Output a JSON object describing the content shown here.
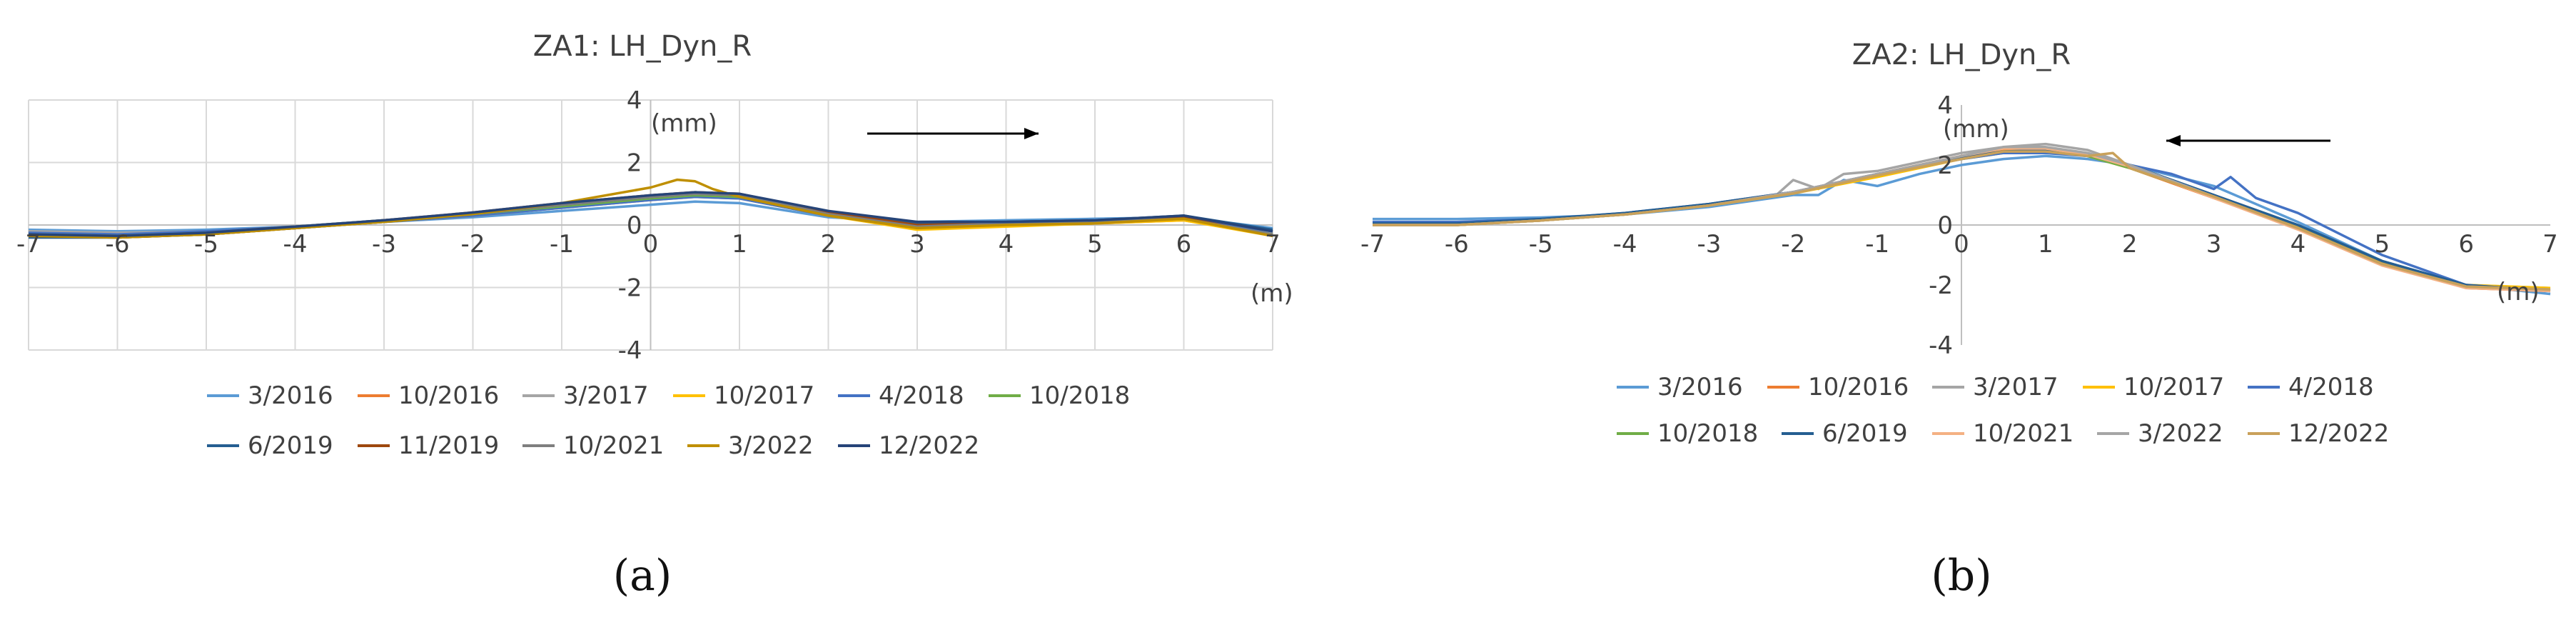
{
  "chart_data": [
    {
      "type": "line",
      "title": "ZA1: LH_Dyn_R",
      "xlabel": "(m)",
      "ylabel": "(mm)",
      "xlim": [
        -7,
        7
      ],
      "ylim": [
        -4,
        4
      ],
      "x_ticks": [
        -7,
        -6,
        -5,
        -4,
        -3,
        -2,
        -1,
        0,
        1,
        2,
        3,
        4,
        5,
        6,
        7
      ],
      "y_ticks": [
        4,
        2,
        0,
        -2,
        -4
      ],
      "grid": true,
      "legend_position": "bottom",
      "arrow_direction": "right",
      "caption": "(a)",
      "series": [
        {
          "name": "3/2016",
          "color": "#5b9bd5",
          "x": [
            -7,
            -6,
            -5,
            -4,
            -3,
            -2,
            -1,
            0,
            0.5,
            1,
            2,
            3,
            4,
            5,
            6,
            7
          ],
          "y": [
            -0.15,
            -0.2,
            -0.15,
            -0.05,
            0.1,
            0.25,
            0.45,
            0.65,
            0.75,
            0.7,
            0.25,
            0.1,
            0.15,
            0.2,
            0.25,
            -0.1
          ]
        },
        {
          "name": "10/2016",
          "color": "#ed7d31",
          "x": [
            -7,
            -6,
            -5,
            -4,
            -3,
            -2,
            -1,
            0,
            0.5,
            1,
            2,
            3,
            4,
            5,
            6,
            7
          ],
          "y": [
            -0.3,
            -0.35,
            -0.25,
            -0.1,
            0.1,
            0.3,
            0.55,
            0.8,
            0.9,
            0.85,
            0.3,
            -0.1,
            0,
            0.05,
            0.15,
            -0.3
          ]
        },
        {
          "name": "3/2017",
          "color": "#a5a5a5",
          "x": [
            -7,
            -6,
            -5,
            -4,
            -3,
            -2,
            -1,
            0,
            0.5,
            1,
            2,
            3,
            4,
            5,
            6,
            7
          ],
          "y": [
            -0.2,
            -0.25,
            -0.2,
            -0.05,
            0.15,
            0.35,
            0.6,
            0.85,
            0.95,
            0.9,
            0.35,
            -0.05,
            0.05,
            0.1,
            0.2,
            -0.25
          ]
        },
        {
          "name": "10/2017",
          "color": "#ffc000",
          "x": [
            -7,
            -6,
            -5,
            -4,
            -3,
            -2,
            -1,
            0,
            0.5,
            1,
            2,
            3,
            4,
            5,
            6,
            7
          ],
          "y": [
            -0.35,
            -0.4,
            -0.3,
            -0.1,
            0.1,
            0.3,
            0.6,
            0.9,
            1.0,
            0.9,
            0.3,
            -0.15,
            -0.05,
            0.05,
            0.15,
            -0.35
          ]
        },
        {
          "name": "4/2018",
          "color": "#4472c4",
          "x": [
            -7,
            -6,
            -5,
            -4,
            -3,
            -2,
            -1,
            0,
            0.5,
            1,
            2,
            3,
            4,
            5,
            6,
            7
          ],
          "y": [
            -0.25,
            -0.3,
            -0.2,
            -0.05,
            0.1,
            0.3,
            0.55,
            0.8,
            0.9,
            0.85,
            0.3,
            0,
            0.1,
            0.15,
            0.2,
            -0.2
          ]
        },
        {
          "name": "10/2018",
          "color": "#70ad47",
          "x": [
            -7,
            -6,
            -5,
            -4,
            -3,
            -2,
            -1,
            0,
            0.5,
            1,
            2,
            3,
            4,
            5,
            6,
            7
          ],
          "y": [
            -0.3,
            -0.35,
            -0.25,
            -0.05,
            0.15,
            0.35,
            0.6,
            0.85,
            0.95,
            0.9,
            0.35,
            -0.05,
            0.05,
            0.1,
            0.2,
            -0.3
          ]
        },
        {
          "name": "6/2019",
          "color": "#255e91",
          "x": [
            -7,
            -6,
            -5,
            -4,
            -3,
            -2,
            -1,
            0,
            0.5,
            1,
            2,
            3,
            4,
            5,
            6,
            7
          ],
          "y": [
            -0.4,
            -0.4,
            -0.3,
            -0.1,
            0.1,
            0.35,
            0.65,
            0.9,
            1.0,
            0.95,
            0.4,
            0.05,
            0.1,
            0.15,
            0.3,
            -0.15
          ]
        },
        {
          "name": "11/2019",
          "color": "#9e480e",
          "x": [
            -7,
            -6,
            -5,
            -4,
            -3,
            -2,
            -1,
            0,
            0.5,
            1,
            2,
            3,
            4,
            5,
            6,
            7
          ],
          "y": [
            -0.35,
            -0.4,
            -0.3,
            -0.1,
            0.15,
            0.4,
            0.7,
            0.95,
            1.05,
            1.0,
            0.4,
            0,
            0.05,
            0.1,
            0.25,
            -0.35
          ]
        },
        {
          "name": "10/2021",
          "color": "#7f7f7f",
          "x": [
            -7,
            -6,
            -5,
            -4,
            -3,
            -2,
            -1,
            0,
            0.5,
            1,
            2,
            3,
            4,
            5,
            6,
            7
          ],
          "y": [
            -0.3,
            -0.35,
            -0.25,
            -0.05,
            0.15,
            0.35,
            0.65,
            0.9,
            1.0,
            0.95,
            0.35,
            -0.05,
            0.05,
            0.1,
            0.2,
            -0.3
          ]
        },
        {
          "name": "3/2022",
          "color": "#bf8f00",
          "x": [
            -7,
            -6,
            -5,
            -4,
            -3,
            -2,
            -1,
            0,
            0.3,
            0.5,
            0.7,
            1,
            2,
            3,
            4,
            5,
            6,
            7
          ],
          "y": [
            -0.35,
            -0.4,
            -0.3,
            -0.1,
            0.1,
            0.35,
            0.7,
            1.2,
            1.45,
            1.4,
            1.15,
            0.9,
            0.3,
            -0.1,
            0,
            0.05,
            0.2,
            -0.35
          ]
        },
        {
          "name": "12/2022",
          "color": "#264478",
          "x": [
            -7,
            -6,
            -5,
            -4,
            -3,
            -2,
            -1,
            0,
            0.5,
            1,
            2,
            3,
            4,
            5,
            6,
            7
          ],
          "y": [
            -0.3,
            -0.35,
            -0.25,
            -0.05,
            0.15,
            0.4,
            0.7,
            0.95,
            1.05,
            1.0,
            0.45,
            0.1,
            0.1,
            0.15,
            0.3,
            -0.2
          ]
        }
      ]
    },
    {
      "type": "line",
      "title": "ZA2: LH_Dyn_R",
      "xlabel": "(m)",
      "ylabel": "(mm)",
      "xlim": [
        -7,
        7
      ],
      "ylim": [
        -4,
        4
      ],
      "x_ticks": [
        -7,
        -6,
        -5,
        -4,
        -3,
        -2,
        -1,
        0,
        1,
        2,
        3,
        4,
        5,
        6,
        7
      ],
      "y_ticks": [
        4,
        2,
        0,
        -2,
        -4
      ],
      "grid": false,
      "legend_position": "bottom",
      "arrow_direction": "left",
      "caption": "(b)",
      "series": [
        {
          "name": "3/2016",
          "color": "#5b9bd5",
          "x": [
            -7,
            -6,
            -5,
            -4,
            -3,
            -2,
            -1.7,
            -1.4,
            -1,
            -0.5,
            0,
            0.5,
            1,
            1.5,
            2,
            3,
            4,
            5,
            6,
            7
          ],
          "y": [
            0.2,
            0.2,
            0.25,
            0.35,
            0.6,
            1.0,
            1.0,
            1.5,
            1.3,
            1.7,
            2.0,
            2.2,
            2.3,
            2.2,
            2.0,
            1.3,
            0.1,
            -1.2,
            -2.0,
            -2.3
          ]
        },
        {
          "name": "10/2016",
          "color": "#ed7d31",
          "x": [
            -7,
            -6,
            -5,
            -4,
            -3,
            -2,
            -1,
            0,
            0.5,
            1,
            1.5,
            2,
            3,
            4,
            5,
            6,
            7
          ],
          "y": [
            0,
            0,
            0.15,
            0.35,
            0.65,
            1.1,
            1.7,
            2.3,
            2.5,
            2.5,
            2.3,
            1.9,
            0.9,
            -0.1,
            -1.3,
            -2.1,
            -2.2
          ]
        },
        {
          "name": "3/2017",
          "color": "#a5a5a5",
          "x": [
            -7,
            -6,
            -5,
            -4,
            -3,
            -2.2,
            -2,
            -1.7,
            -1.4,
            -1,
            0,
            0.5,
            1,
            1.5,
            2,
            3,
            4,
            5,
            6,
            7
          ],
          "y": [
            0,
            0,
            0.15,
            0.35,
            0.65,
            1.0,
            1.5,
            1.2,
            1.7,
            1.8,
            2.4,
            2.6,
            2.7,
            2.5,
            2.0,
            1.0,
            -0.1,
            -1.3,
            -2.0,
            -2.1
          ]
        },
        {
          "name": "10/2017",
          "color": "#ffc000",
          "x": [
            -7,
            -6,
            -5,
            -4,
            -3,
            -2,
            -1,
            0,
            0.5,
            1,
            1.5,
            2,
            3,
            4,
            5,
            6,
            7
          ],
          "y": [
            0,
            0,
            0.15,
            0.35,
            0.65,
            1.05,
            1.6,
            2.2,
            2.4,
            2.45,
            2.3,
            1.9,
            0.95,
            -0.05,
            -1.25,
            -2.0,
            -2.1
          ]
        },
        {
          "name": "4/2018",
          "color": "#4472c4",
          "x": [
            -7,
            -6,
            -5,
            -4,
            -3,
            -2,
            -1,
            0,
            0.5,
            1,
            1.5,
            2,
            2.5,
            3,
            3.2,
            3.5,
            4,
            5,
            6,
            7
          ],
          "y": [
            0.1,
            0.1,
            0.2,
            0.4,
            0.7,
            1.1,
            1.7,
            2.2,
            2.4,
            2.4,
            2.3,
            2.0,
            1.7,
            1.2,
            1.6,
            0.9,
            0.4,
            -1.0,
            -2.0,
            -2.2
          ]
        },
        {
          "name": "10/2018",
          "color": "#70ad47",
          "x": [
            -7,
            -6,
            -5,
            -4,
            -3,
            -2,
            -1,
            0,
            0.5,
            1,
            1.5,
            2,
            3,
            4,
            5,
            6,
            7
          ],
          "y": [
            0,
            0,
            0.15,
            0.35,
            0.65,
            1.1,
            1.65,
            2.25,
            2.45,
            2.5,
            2.3,
            1.9,
            0.95,
            -0.1,
            -1.3,
            -2.05,
            -2.15
          ]
        },
        {
          "name": "6/2019",
          "color": "#255e91",
          "x": [
            -7,
            -6,
            -5,
            -4,
            -3,
            -2,
            -1,
            0,
            0.5,
            1,
            1.5,
            2,
            3,
            4,
            5,
            6,
            7
          ],
          "y": [
            0.05,
            0.05,
            0.2,
            0.4,
            0.7,
            1.1,
            1.7,
            2.25,
            2.45,
            2.5,
            2.35,
            2.0,
            1.0,
            0,
            -1.2,
            -2.0,
            -2.2
          ]
        },
        {
          "name": "10/2021",
          "color": "#f4b183",
          "x": [
            -7,
            -6,
            -5,
            -4,
            -3,
            -2,
            -1,
            0,
            0.5,
            1,
            1.5,
            2,
            3,
            4,
            5,
            6,
            7
          ],
          "y": [
            0,
            0,
            0.15,
            0.35,
            0.65,
            1.1,
            1.7,
            2.3,
            2.55,
            2.55,
            2.35,
            1.95,
            0.9,
            -0.15,
            -1.35,
            -2.1,
            -2.2
          ]
        },
        {
          "name": "3/2022",
          "color": "#a5a5a5",
          "x": [
            -7,
            -6,
            -5,
            -4,
            -3,
            -2,
            -1,
            0,
            0.5,
            1,
            1.5,
            2,
            3,
            4,
            5,
            6,
            7
          ],
          "y": [
            0,
            0,
            0.15,
            0.35,
            0.65,
            1.1,
            1.7,
            2.3,
            2.6,
            2.6,
            2.4,
            2.0,
            0.95,
            -0.1,
            -1.3,
            -2.05,
            -2.15
          ]
        },
        {
          "name": "12/2022",
          "color": "#c9a15a",
          "x": [
            -7,
            -6,
            -5,
            -4,
            -3,
            -2,
            -1,
            0,
            0.5,
            1,
            1.5,
            1.8,
            2,
            3,
            4,
            5,
            6,
            7
          ],
          "y": [
            0,
            0,
            0.15,
            0.35,
            0.65,
            1.05,
            1.65,
            2.2,
            2.45,
            2.45,
            2.3,
            2.4,
            1.9,
            0.95,
            -0.1,
            -1.3,
            -2.05,
            -2.15
          ]
        }
      ]
    }
  ]
}
